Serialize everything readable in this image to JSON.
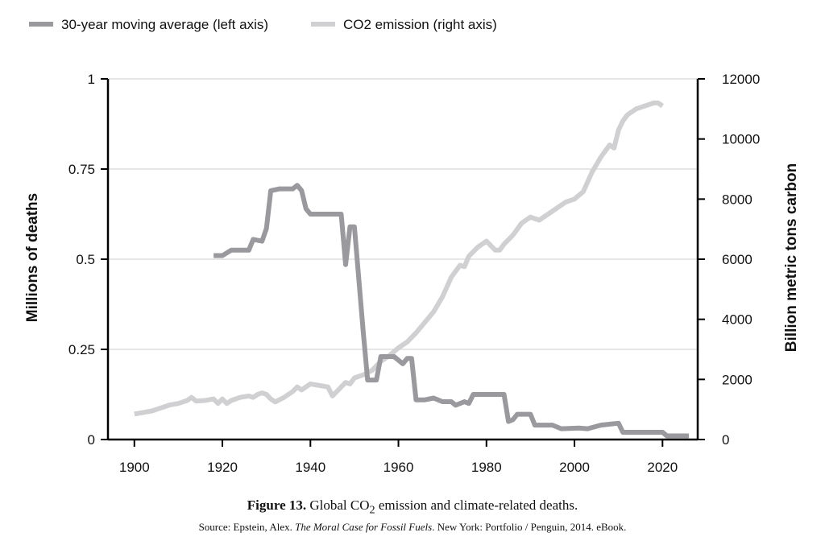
{
  "chart_data": {
    "type": "line",
    "xlim": [
      1894,
      2028
    ],
    "ylim_left": [
      0,
      1
    ],
    "ylim_right": [
      0,
      12000
    ],
    "ylabel_left": "Millions of deaths",
    "ylabel_right": "Billion metric tons carbon",
    "x_ticks": [
      "1900",
      "1920",
      "1940",
      "1960",
      "1980",
      "2000",
      "2020"
    ],
    "y_left_ticks": [
      "0",
      "0.25",
      "0.5",
      "0.75",
      "1"
    ],
    "y_right_ticks": [
      "0",
      "2000",
      "4000",
      "6000",
      "8000",
      "10000",
      "12000"
    ],
    "grid": "horizontal",
    "legend_position": "top-left",
    "series": [
      {
        "name": "30-year moving average (left axis)",
        "axis": "left",
        "color": "#9a9a9e",
        "points": [
          [
            1918,
            0.51
          ],
          [
            1920,
            0.51
          ],
          [
            1922,
            0.525
          ],
          [
            1924,
            0.525
          ],
          [
            1926,
            0.525
          ],
          [
            1927,
            0.555
          ],
          [
            1929,
            0.55
          ],
          [
            1930,
            0.585
          ],
          [
            1931,
            0.69
          ],
          [
            1933,
            0.695
          ],
          [
            1936,
            0.695
          ],
          [
            1937,
            0.705
          ],
          [
            1938,
            0.69
          ],
          [
            1939,
            0.64
          ],
          [
            1940,
            0.625
          ],
          [
            1942,
            0.625
          ],
          [
            1946,
            0.625
          ],
          [
            1947,
            0.625
          ],
          [
            1948,
            0.485
          ],
          [
            1949,
            0.59
          ],
          [
            1950,
            0.59
          ],
          [
            1952,
            0.3
          ],
          [
            1953,
            0.165
          ],
          [
            1955,
            0.165
          ],
          [
            1956,
            0.23
          ],
          [
            1959,
            0.23
          ],
          [
            1961,
            0.21
          ],
          [
            1962,
            0.225
          ],
          [
            1963,
            0.225
          ],
          [
            1964,
            0.11
          ],
          [
            1966,
            0.11
          ],
          [
            1968,
            0.115
          ],
          [
            1970,
            0.105
          ],
          [
            1972,
            0.105
          ],
          [
            1973,
            0.095
          ],
          [
            1975,
            0.105
          ],
          [
            1976,
            0.1
          ],
          [
            1977,
            0.125
          ],
          [
            1979,
            0.125
          ],
          [
            1984,
            0.125
          ],
          [
            1985,
            0.05
          ],
          [
            1986,
            0.055
          ],
          [
            1987,
            0.07
          ],
          [
            1990,
            0.07
          ],
          [
            1991,
            0.04
          ],
          [
            1994,
            0.04
          ],
          [
            1995,
            0.04
          ],
          [
            1997,
            0.03
          ],
          [
            2001,
            0.032
          ],
          [
            2003,
            0.03
          ],
          [
            2006,
            0.04
          ],
          [
            2010,
            0.045
          ],
          [
            2011,
            0.02
          ],
          [
            2014,
            0.02
          ],
          [
            2018,
            0.02
          ],
          [
            2020,
            0.02
          ],
          [
            2021,
            0.01
          ],
          [
            2026,
            0.01
          ]
        ]
      },
      {
        "name": "CO2 emission (right axis)",
        "axis": "right",
        "color": "#d0d0d2",
        "points": [
          [
            1900,
            850
          ],
          [
            1902,
            900
          ],
          [
            1904,
            950
          ],
          [
            1906,
            1050
          ],
          [
            1908,
            1150
          ],
          [
            1910,
            1200
          ],
          [
            1912,
            1300
          ],
          [
            1913,
            1400
          ],
          [
            1914,
            1280
          ],
          [
            1916,
            1300
          ],
          [
            1918,
            1350
          ],
          [
            1919,
            1200
          ],
          [
            1920,
            1350
          ],
          [
            1921,
            1200
          ],
          [
            1922,
            1300
          ],
          [
            1924,
            1400
          ],
          [
            1926,
            1450
          ],
          [
            1927,
            1400
          ],
          [
            1928,
            1500
          ],
          [
            1929,
            1550
          ],
          [
            1930,
            1500
          ],
          [
            1931,
            1350
          ],
          [
            1932,
            1250
          ],
          [
            1934,
            1400
          ],
          [
            1936,
            1600
          ],
          [
            1937,
            1750
          ],
          [
            1938,
            1650
          ],
          [
            1940,
            1850
          ],
          [
            1942,
            1800
          ],
          [
            1944,
            1750
          ],
          [
            1945,
            1450
          ],
          [
            1946,
            1600
          ],
          [
            1947,
            1750
          ],
          [
            1948,
            1900
          ],
          [
            1949,
            1850
          ],
          [
            1950,
            2050
          ],
          [
            1952,
            2150
          ],
          [
            1954,
            2300
          ],
          [
            1956,
            2600
          ],
          [
            1958,
            2800
          ],
          [
            1960,
            3050
          ],
          [
            1962,
            3250
          ],
          [
            1964,
            3550
          ],
          [
            1966,
            3900
          ],
          [
            1968,
            4250
          ],
          [
            1970,
            4750
          ],
          [
            1972,
            5400
          ],
          [
            1974,
            5800
          ],
          [
            1975,
            5750
          ],
          [
            1976,
            6100
          ],
          [
            1978,
            6400
          ],
          [
            1980,
            6600
          ],
          [
            1981,
            6450
          ],
          [
            1982,
            6300
          ],
          [
            1983,
            6300
          ],
          [
            1984,
            6500
          ],
          [
            1986,
            6800
          ],
          [
            1988,
            7200
          ],
          [
            1990,
            7400
          ],
          [
            1992,
            7300
          ],
          [
            1994,
            7500
          ],
          [
            1996,
            7700
          ],
          [
            1998,
            7900
          ],
          [
            2000,
            8000
          ],
          [
            2002,
            8250
          ],
          [
            2004,
            8900
          ],
          [
            2006,
            9400
          ],
          [
            2008,
            9800
          ],
          [
            2009,
            9700
          ],
          [
            2010,
            10300
          ],
          [
            2011,
            10600
          ],
          [
            2012,
            10800
          ],
          [
            2014,
            11000
          ],
          [
            2016,
            11100
          ],
          [
            2018,
            11200
          ],
          [
            2019,
            11200
          ],
          [
            2020,
            11100
          ]
        ]
      }
    ]
  },
  "caption": {
    "label": "Figure 13.",
    "text": "Global CO",
    "subscript": "2",
    "text_after": " emission and climate-related deaths."
  },
  "source": {
    "prefix": "Source: Epstein, Alex. ",
    "title": "The Moral Case for Fossil Fuels",
    "suffix": ". New York: Portfolio / Penguin, 2014. eBook."
  }
}
